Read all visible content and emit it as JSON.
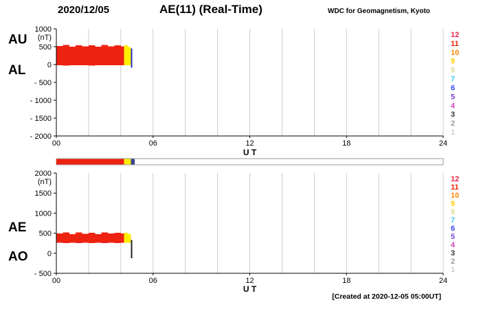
{
  "header": {
    "date": "2020/12/05",
    "title": "AE(11) (Real-Time)",
    "source": "WDC for Geomagnetism, Kyoto"
  },
  "footer": {
    "created": "[Created at 2020-12-05 05:00UT]"
  },
  "station_legend": {
    "numbers": [
      {
        "n": "12",
        "color": "#ee2244"
      },
      {
        "n": "11",
        "color": "#ee2200"
      },
      {
        "n": "10",
        "color": "#ff8800"
      },
      {
        "n": "9",
        "color": "#ffcc00"
      },
      {
        "n": "8",
        "color": "#dddd99"
      },
      {
        "n": "7",
        "color": "#44ccee"
      },
      {
        "n": "6",
        "color": "#3344ee"
      },
      {
        "n": "5",
        "color": "#7744dd"
      },
      {
        "n": "4",
        "color": "#cc44bb"
      },
      {
        "n": "3",
        "color": "#333333"
      },
      {
        "n": "2",
        "color": "#999999"
      },
      {
        "n": "1",
        "color": "#cccccc"
      }
    ]
  },
  "chart_data": [
    {
      "id": "au-al",
      "type": "area",
      "series_labels": [
        {
          "text": "AU",
          "v": 700
        },
        {
          "text": "AL",
          "v": -150
        }
      ],
      "ylabel": "(nT)",
      "ylim": [
        -2000,
        1000
      ],
      "yticks": [
        {
          "v": 1000,
          "label": "1000"
        },
        {
          "v": 500,
          "label": "500"
        },
        {
          "v": 0,
          "label": "0"
        },
        {
          "v": -500,
          "label": "- 500"
        },
        {
          "v": -1000,
          "label": "- 1000"
        },
        {
          "v": -1500,
          "label": "- 1500"
        },
        {
          "v": -2000,
          "label": "- 2000"
        }
      ],
      "xlim": [
        0,
        24
      ],
      "xticks": [
        {
          "v": 0,
          "label": "00"
        },
        {
          "v": 6,
          "label": "06"
        },
        {
          "v": 12,
          "label": "12"
        },
        {
          "v": 18,
          "label": "18"
        },
        {
          "v": 24,
          "label": "24"
        }
      ],
      "xlabel": "U T",
      "grid_hours": [
        2,
        4,
        6,
        8,
        10,
        12,
        14,
        16,
        18,
        20,
        22
      ],
      "segments": [
        {
          "t": [
            0.0,
            0.4
          ],
          "v": [
            -15,
            520
          ],
          "color": "#ee2211"
        },
        {
          "t": [
            0.4,
            0.8
          ],
          "v": [
            -25,
            545
          ],
          "color": "#ee2211"
        },
        {
          "t": [
            0.8,
            1.2
          ],
          "v": [
            -15,
            500
          ],
          "color": "#ee2211"
        },
        {
          "t": [
            1.2,
            1.6
          ],
          "v": [
            -20,
            540
          ],
          "color": "#ee2211"
        },
        {
          "t": [
            1.6,
            2.0
          ],
          "v": [
            -15,
            505
          ],
          "color": "#ee2211"
        },
        {
          "t": [
            2.0,
            2.4
          ],
          "v": [
            -25,
            535
          ],
          "color": "#ee2211"
        },
        {
          "t": [
            2.4,
            2.8
          ],
          "v": [
            -15,
            500
          ],
          "color": "#ee2211"
        },
        {
          "t": [
            2.8,
            3.2
          ],
          "v": [
            -20,
            545
          ],
          "color": "#ee2211"
        },
        {
          "t": [
            3.2,
            3.6
          ],
          "v": [
            -15,
            510
          ],
          "color": "#ee2211"
        },
        {
          "t": [
            3.6,
            4.0
          ],
          "v": [
            -20,
            535
          ],
          "color": "#ee2211"
        },
        {
          "t": [
            4.0,
            4.2
          ],
          "v": [
            -15,
            505
          ],
          "color": "#ee2211"
        },
        {
          "t": [
            4.2,
            4.45
          ],
          "v": [
            -15,
            535
          ],
          "color": "#ffee00"
        },
        {
          "t": [
            4.45,
            4.62
          ],
          "v": [
            -20,
            495
          ],
          "color": "#ffee00"
        },
        {
          "t": [
            4.62,
            4.72
          ],
          "v": [
            -90,
            450
          ],
          "color": "#2233cc"
        }
      ]
    },
    {
      "id": "strip",
      "type": "strip",
      "xlim": [
        0,
        24
      ],
      "segments": [
        {
          "t": [
            0.0,
            4.2
          ],
          "color": "#ee2211"
        },
        {
          "t": [
            4.2,
            4.62
          ],
          "color": "#ffee00"
        },
        {
          "t": [
            4.62,
            4.85
          ],
          "color": "#39418f"
        }
      ]
    },
    {
      "id": "ae-ao",
      "type": "area",
      "series_labels": [
        {
          "text": "AE",
          "v": 650
        },
        {
          "text": "AO",
          "v": -80
        }
      ],
      "ylabel": "(nT)",
      "ylim": [
        -500,
        2000
      ],
      "yticks": [
        {
          "v": 2000,
          "label": "2000"
        },
        {
          "v": 1500,
          "label": "1500"
        },
        {
          "v": 1000,
          "label": "1000"
        },
        {
          "v": 500,
          "label": "500"
        },
        {
          "v": 0,
          "label": "0"
        },
        {
          "v": -500,
          "label": "- 500"
        }
      ],
      "xlim": [
        0,
        24
      ],
      "xticks": [
        {
          "v": 0,
          "label": "00"
        },
        {
          "v": 6,
          "label": "06"
        },
        {
          "v": 12,
          "label": "12"
        },
        {
          "v": 18,
          "label": "18"
        },
        {
          "v": 24,
          "label": "24"
        }
      ],
      "xlabel": "U T",
      "grid_hours": [
        2,
        4,
        6,
        8,
        10,
        12,
        14,
        16,
        18,
        20,
        22
      ],
      "segments": [
        {
          "t": [
            0.0,
            0.4
          ],
          "v": [
            265,
            495
          ],
          "color": "#ee2211"
        },
        {
          "t": [
            0.4,
            0.8
          ],
          "v": [
            250,
            520
          ],
          "color": "#ee2211"
        },
        {
          "t": [
            0.8,
            1.2
          ],
          "v": [
            265,
            480
          ],
          "color": "#ee2211"
        },
        {
          "t": [
            1.2,
            1.6
          ],
          "v": [
            255,
            515
          ],
          "color": "#ee2211"
        },
        {
          "t": [
            1.6,
            2.0
          ],
          "v": [
            265,
            485
          ],
          "color": "#ee2211"
        },
        {
          "t": [
            2.0,
            2.4
          ],
          "v": [
            250,
            510
          ],
          "color": "#ee2211"
        },
        {
          "t": [
            2.4,
            2.8
          ],
          "v": [
            265,
            480
          ],
          "color": "#ee2211"
        },
        {
          "t": [
            2.8,
            3.2
          ],
          "v": [
            255,
            520
          ],
          "color": "#ee2211"
        },
        {
          "t": [
            3.2,
            3.6
          ],
          "v": [
            265,
            490
          ],
          "color": "#ee2211"
        },
        {
          "t": [
            3.6,
            4.0
          ],
          "v": [
            255,
            510
          ],
          "color": "#ee2211"
        },
        {
          "t": [
            4.0,
            4.2
          ],
          "v": [
            265,
            490
          ],
          "color": "#ee2211"
        },
        {
          "t": [
            4.2,
            4.45
          ],
          "v": [
            260,
            510
          ],
          "color": "#ffee00"
        },
        {
          "t": [
            4.45,
            4.62
          ],
          "v": [
            265,
            480
          ],
          "color": "#ffee00"
        },
        {
          "t": [
            4.62,
            4.7
          ],
          "v": [
            -120,
            330
          ],
          "color": "#222222"
        }
      ]
    }
  ]
}
